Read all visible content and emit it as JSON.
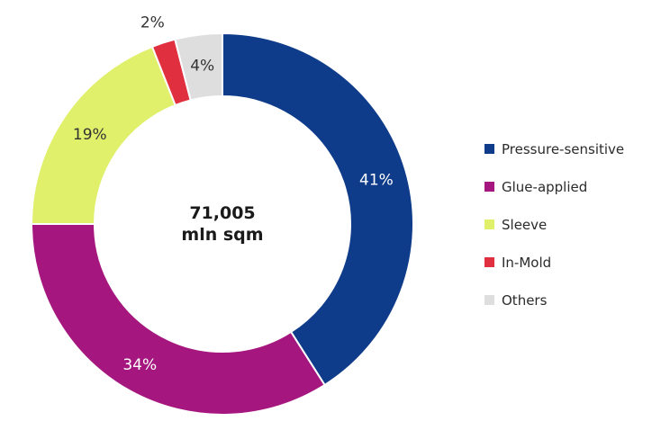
{
  "chart_data": {
    "type": "pie",
    "donut": true,
    "center_label": [
      "71,005",
      "mln sqm"
    ],
    "categories": [
      "Pressure-sensitive",
      "Glue-applied",
      "Sleeve",
      "In-Mold",
      "Others"
    ],
    "values": [
      41,
      34,
      19,
      2,
      4
    ],
    "value_labels": [
      "41%",
      "34%",
      "19%",
      "2%",
      "4%"
    ],
    "colors": [
      "#0f3c8a",
      "#a5177f",
      "#e0f06a",
      "#e0303f",
      "#dedede"
    ],
    "label_colors": [
      "#ffffff",
      "#ffffff",
      "#333333",
      "#333333",
      "#333333"
    ],
    "legend_position": "right"
  }
}
